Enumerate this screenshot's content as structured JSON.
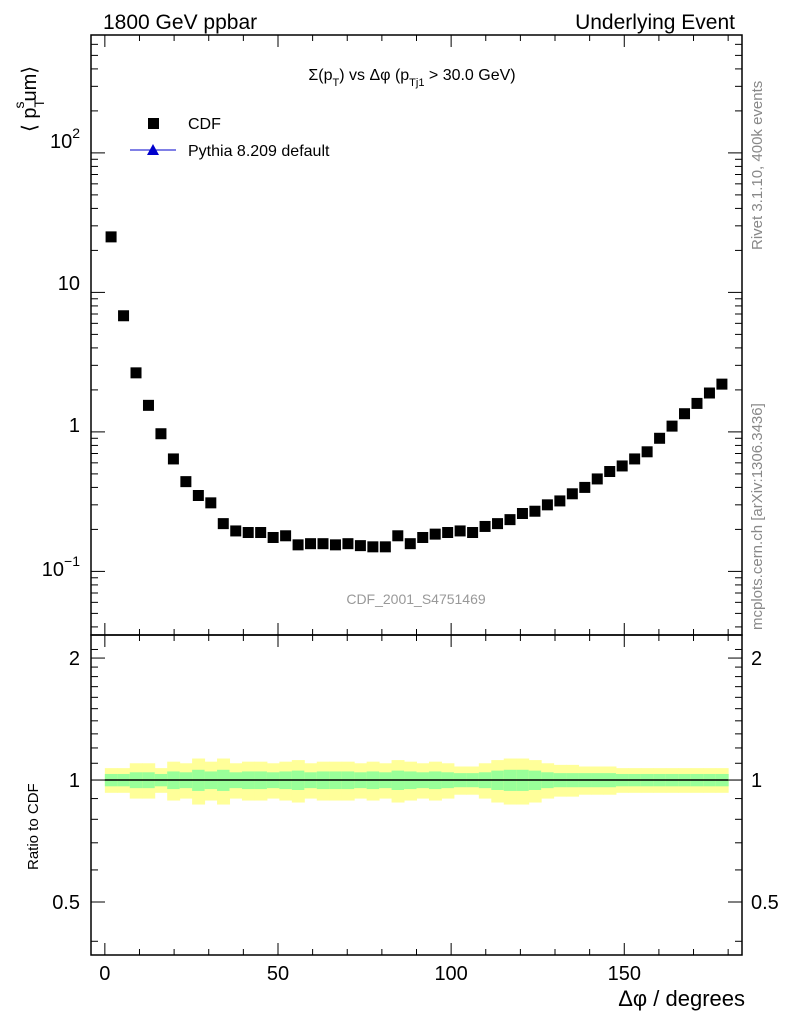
{
  "header": {
    "left": "1800 GeV ppbar",
    "right": "Underlying Event"
  },
  "side_labels": {
    "rivet": "Rivet 3.1.10,  400k events",
    "mcplots": "mcplots.cern.ch [arXiv:1306.3436]"
  },
  "colors": {
    "data": "#000000",
    "mc_line": "#0000cc",
    "band_inner": "#99ff99",
    "band_outer": "#ffff99",
    "watermark": "#999999"
  },
  "chart_data": [
    {
      "type": "scatter",
      "title": "Σ(pT) vs Δφ (pTj1 > 30.0 GeV)",
      "title_parts": {
        "a": "Σ(p",
        "a_sub": "T",
        "b": ") vs Δφ (p",
        "b_sub": "Tj1",
        "c": " > 30.0 GeV)"
      },
      "ylabel": "⟨ p",
      "ylabel_sup": "s",
      "ylabel_sub": "T",
      "ylabel_tail": "um⟩",
      "yscale": "log",
      "ylim": [
        0.035,
        700
      ],
      "xlim": [
        -4,
        184
      ],
      "ytick_labels": {
        "t1": "10",
        "t1_exp": "−1",
        "t2": "1",
        "t3": "10",
        "t4": "10",
        "t4_exp": "2"
      },
      "legend_position": "top-left",
      "legend": [
        {
          "name": "CDF",
          "marker": "square"
        },
        {
          "name": "Pythia 8.209 default",
          "marker": "triangle-line"
        }
      ],
      "watermark": "CDF_2001_S4751469",
      "series": [
        {
          "name": "CDF",
          "x": [
            1.8,
            5.4,
            9.0,
            12.6,
            16.2,
            19.8,
            23.4,
            27.0,
            30.6,
            34.2,
            37.8,
            41.4,
            45.0,
            48.6,
            52.2,
            55.8,
            59.4,
            63.0,
            66.6,
            70.2,
            73.8,
            77.4,
            81.0,
            84.6,
            88.2,
            91.8,
            95.4,
            99.0,
            102.6,
            106.2,
            109.8,
            113.4,
            117.0,
            120.6,
            124.2,
            127.8,
            131.4,
            135.0,
            138.6,
            142.2,
            145.8,
            149.4,
            153.0,
            156.6,
            160.2,
            163.8,
            167.4,
            171.0,
            174.6,
            178.2
          ],
          "y": [
            25.0,
            6.8,
            2.65,
            1.55,
            0.97,
            0.64,
            0.44,
            0.35,
            0.31,
            0.22,
            0.195,
            0.19,
            0.19,
            0.175,
            0.18,
            0.155,
            0.158,
            0.158,
            0.155,
            0.158,
            0.153,
            0.15,
            0.15,
            0.18,
            0.158,
            0.175,
            0.185,
            0.19,
            0.195,
            0.19,
            0.21,
            0.22,
            0.235,
            0.26,
            0.27,
            0.3,
            0.32,
            0.36,
            0.4,
            0.46,
            0.52,
            0.57,
            0.64,
            0.72,
            0.9,
            1.1,
            1.35,
            1.6,
            1.9,
            2.2
          ]
        }
      ]
    },
    {
      "type": "area",
      "ylabel": "Ratio to CDF",
      "xlabel": "Δφ / degrees",
      "xlim": [
        -4,
        184
      ],
      "ylim": [
        0.37,
        2.28
      ],
      "yscale": "log",
      "x_tick_labels": [
        "0",
        "50",
        "100",
        "150"
      ],
      "y_tick_labels": [
        "0.5",
        "1",
        "2"
      ],
      "reference_line": 1.0,
      "bands": {
        "bin_width": 3.6,
        "x_start": 0,
        "inner_half_width": [
          0.035,
          0.035,
          0.045,
          0.045,
          0.035,
          0.05,
          0.045,
          0.06,
          0.05,
          0.06,
          0.045,
          0.05,
          0.05,
          0.045,
          0.05,
          0.055,
          0.045,
          0.05,
          0.05,
          0.05,
          0.045,
          0.05,
          0.045,
          0.055,
          0.05,
          0.045,
          0.05,
          0.045,
          0.04,
          0.04,
          0.045,
          0.055,
          0.06,
          0.06,
          0.055,
          0.045,
          0.04,
          0.04,
          0.04,
          0.04,
          0.04,
          0.035,
          0.035,
          0.035,
          0.035,
          0.035,
          0.035,
          0.035,
          0.035,
          0.035
        ],
        "outer_half_width": [
          0.07,
          0.07,
          0.1,
          0.1,
          0.07,
          0.11,
          0.1,
          0.13,
          0.11,
          0.13,
          0.1,
          0.11,
          0.11,
          0.1,
          0.11,
          0.12,
          0.1,
          0.11,
          0.11,
          0.11,
          0.1,
          0.11,
          0.1,
          0.12,
          0.11,
          0.1,
          0.11,
          0.1,
          0.08,
          0.08,
          0.1,
          0.12,
          0.13,
          0.13,
          0.12,
          0.1,
          0.09,
          0.09,
          0.08,
          0.08,
          0.08,
          0.07,
          0.07,
          0.07,
          0.07,
          0.07,
          0.07,
          0.07,
          0.07,
          0.07
        ]
      }
    }
  ]
}
